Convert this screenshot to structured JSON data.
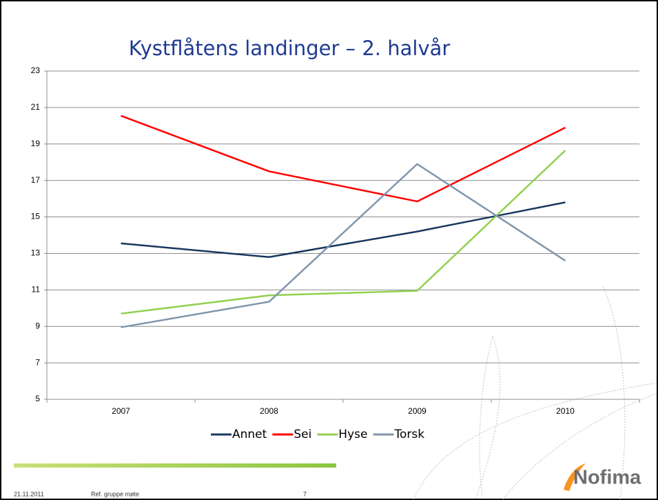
{
  "chart_data": {
    "type": "line",
    "title": "Kystflåtens landinger – 2. halvår",
    "categories": [
      "2007",
      "2008",
      "2009",
      "2010"
    ],
    "series": [
      {
        "name": "Annet",
        "color": "#17375e",
        "values": [
          13.55,
          12.8,
          14.2,
          15.8
        ]
      },
      {
        "name": "Sei",
        "color": "#ff0000",
        "values": [
          20.55,
          17.5,
          15.85,
          19.9
        ]
      },
      {
        "name": "Hyse",
        "color": "#92d050",
        "values": [
          9.7,
          10.7,
          10.95,
          18.65
        ]
      },
      {
        "name": "Torsk",
        "color": "#8095ab",
        "values": [
          8.95,
          10.35,
          17.9,
          12.6
        ]
      }
    ],
    "ylim": [
      5,
      23
    ],
    "yticks": [
      5,
      7,
      9,
      11,
      13,
      15,
      17,
      19,
      21,
      23
    ],
    "grid": true,
    "legend": "bottom"
  },
  "footer": {
    "date": "21.11.2011",
    "text": "Ref. gruppe møte",
    "page": "7"
  },
  "logo": "Nofima"
}
